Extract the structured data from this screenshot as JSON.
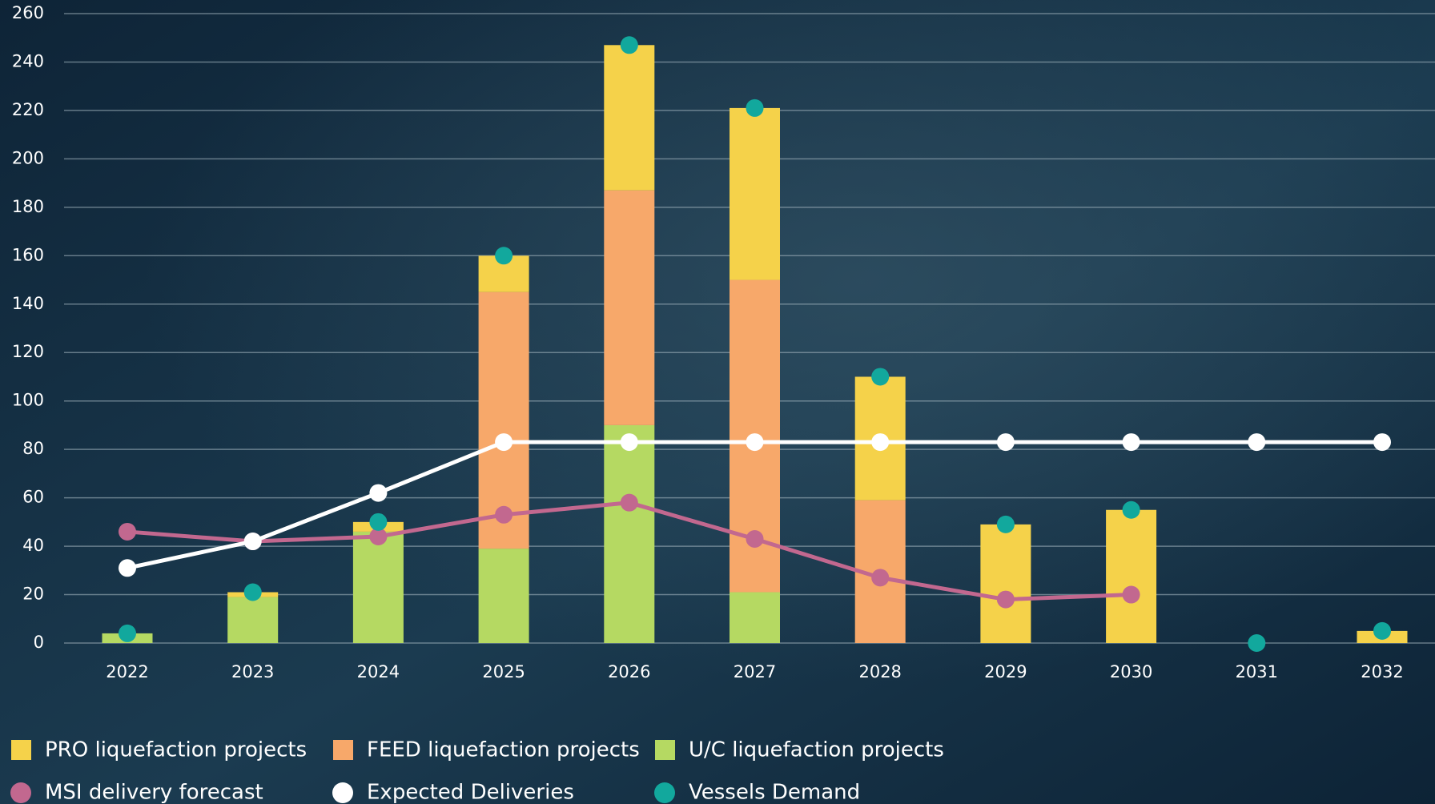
{
  "chart_data": {
    "type": "bar",
    "categories": [
      "2022",
      "2023",
      "2024",
      "2025",
      "2026",
      "2027",
      "2028",
      "2029",
      "2030",
      "2031",
      "2032"
    ],
    "ylim": [
      0,
      260
    ],
    "yticks": [
      0,
      20,
      40,
      60,
      80,
      100,
      120,
      140,
      160,
      180,
      200,
      220,
      240,
      260
    ],
    "grid": true,
    "stacked": true,
    "legend": "bottom",
    "series": [
      {
        "name": "PRO liquefaction projects",
        "type": "bar",
        "color": "#f5d24a",
        "values": [
          0,
          2,
          4,
          15,
          60,
          71,
          51,
          49,
          55,
          0,
          5
        ]
      },
      {
        "name": "FEED liquefaction projects",
        "type": "bar",
        "color": "#f7a86a",
        "values": [
          0,
          0,
          0,
          106,
          97,
          129,
          59,
          0,
          0,
          0,
          0
        ]
      },
      {
        "name": "U/C liquefaction projects",
        "type": "bar",
        "color": "#b5d962",
        "values": [
          4,
          19,
          46,
          39,
          90,
          21,
          0,
          0,
          0,
          0,
          0
        ]
      },
      {
        "name": "MSI delivery forecast",
        "type": "line",
        "color": "#c2688f",
        "values": [
          46,
          42,
          44,
          53,
          58,
          43,
          27,
          18,
          20,
          null,
          null
        ]
      },
      {
        "name": "Expected Deliveries",
        "type": "line",
        "color": "#ffffff",
        "values": [
          31,
          42,
          62,
          83,
          83,
          83,
          83,
          83,
          83,
          83,
          83
        ]
      },
      {
        "name": "Vessels Demand",
        "type": "scatter",
        "color": "#12a89d",
        "values": [
          4,
          21,
          50,
          160,
          247,
          221,
          110,
          49,
          55,
          0,
          5
        ]
      }
    ]
  }
}
